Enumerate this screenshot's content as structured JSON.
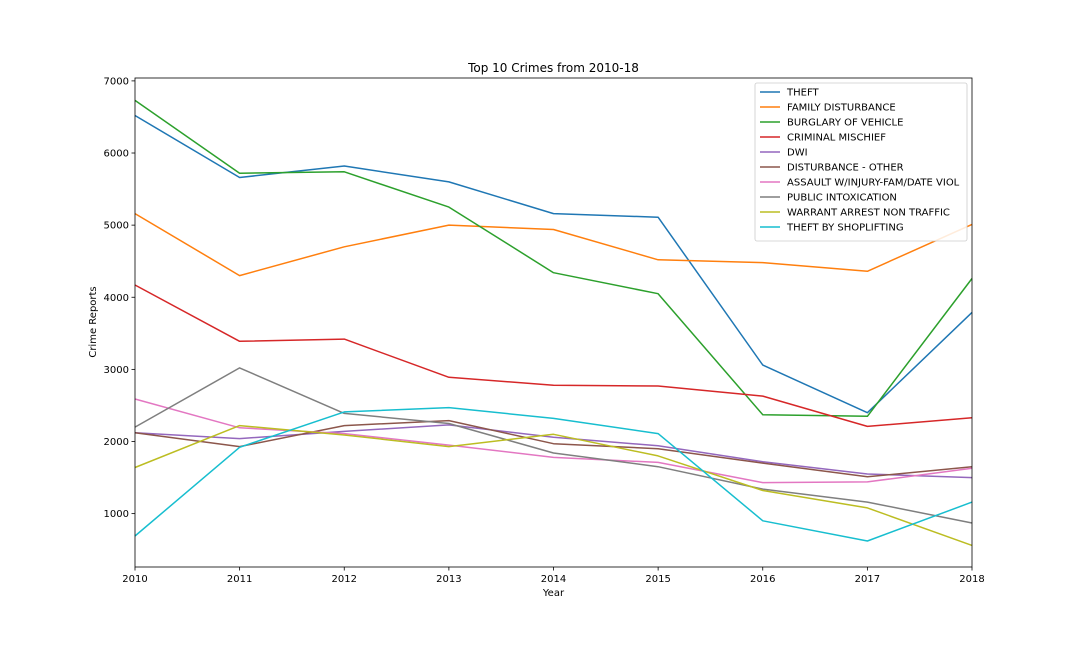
{
  "chart_data": {
    "type": "line",
    "title": "Top 10 Crimes from 2010-18",
    "xlabel": "Year",
    "ylabel": "Crime Reports",
    "x": [
      2010,
      2011,
      2012,
      2013,
      2014,
      2015,
      2016,
      2017,
      2018
    ],
    "xlim": [
      2010,
      2018
    ],
    "ylim": [
      260,
      7040
    ],
    "yticks": [
      1000,
      2000,
      3000,
      4000,
      5000,
      6000,
      7000
    ],
    "grid": false,
    "legend_position": "top-right",
    "series": [
      {
        "name": "THEFT",
        "color": "#1f77b4",
        "values": [
          6520,
          5660,
          5820,
          5600,
          5160,
          5110,
          3060,
          2400,
          3790
        ]
      },
      {
        "name": "FAMILY DISTURBANCE",
        "color": "#ff7f0e",
        "values": [
          5160,
          4300,
          4700,
          5000,
          4940,
          4520,
          4480,
          4360,
          5010
        ]
      },
      {
        "name": "BURGLARY OF VEHICLE",
        "color": "#2ca02c",
        "values": [
          6730,
          5720,
          5740,
          5250,
          4340,
          4050,
          2370,
          2350,
          4260
        ]
      },
      {
        "name": "CRIMINAL MISCHIEF",
        "color": "#d62728",
        "values": [
          4170,
          3390,
          3420,
          2890,
          2780,
          2770,
          2630,
          2210,
          2330
        ]
      },
      {
        "name": "DWI",
        "color": "#9467bd",
        "values": [
          2120,
          2040,
          2140,
          2230,
          2060,
          1940,
          1720,
          1550,
          1500
        ]
      },
      {
        "name": "DISTURBANCE - OTHER",
        "color": "#8c564b",
        "values": [
          2120,
          1930,
          2220,
          2290,
          1970,
          1900,
          1700,
          1510,
          1650
        ]
      },
      {
        "name": "ASSAULT W/INJURY-FAM/DATE VIOL",
        "color": "#e377c2",
        "values": [
          2590,
          2190,
          2110,
          1950,
          1780,
          1710,
          1430,
          1440,
          1630
        ]
      },
      {
        "name": "PUBLIC INTOXICATION",
        "color": "#7f7f7f",
        "values": [
          2200,
          3020,
          2390,
          2250,
          1840,
          1650,
          1340,
          1160,
          870
        ]
      },
      {
        "name": "WARRANT ARREST NON TRAFFIC",
        "color": "#bcbd22",
        "values": [
          1640,
          2220,
          2090,
          1930,
          2100,
          1800,
          1320,
          1080,
          560
        ]
      },
      {
        "name": "THEFT BY SHOPLIFTING",
        "color": "#17becf",
        "values": [
          690,
          1920,
          2410,
          2470,
          2320,
          2110,
          900,
          620,
          1160
        ]
      }
    ]
  }
}
